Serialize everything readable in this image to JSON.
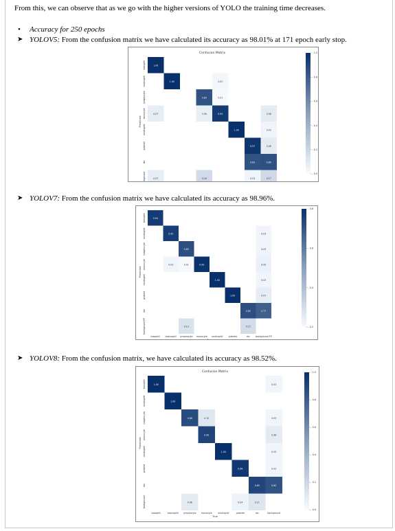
{
  "intro": "From this, we can observe that as we go with the higher versions of YOLO the training time decreases.",
  "bullet": "Accuracy for 250 epochs",
  "sections": [
    {
      "model": "YOLOV5:",
      "text": " From the confusion matrix we have calculated its accuracy as 98.01% at 171 epoch early stop."
    },
    {
      "model": "YOLOV7:",
      "text": " From the confusion matrix we have calculated its accuracy as 98.96%."
    },
    {
      "model": "YOLOV8:",
      "text": " From the confusion matrix, we have calculated its accuracy as 98.52%."
    }
  ],
  "chart_data": [
    {
      "type": "heatmap",
      "title": "Confusion Matrix",
      "xlabel": "True",
      "ylabel": "Predicted",
      "categories": [
        "basophil",
        "eosinophil",
        "lymphocyte",
        "monocyte",
        "neutrophil",
        "platelet",
        "rbc",
        "background"
      ],
      "colorbar_ticks": [
        "1.0",
        "0.8",
        "0.6",
        "0.4",
        "0.2",
        "0.0"
      ],
      "cells": [
        {
          "r": 0,
          "c": 0,
          "v": "1.00"
        },
        {
          "r": 1,
          "c": 1,
          "v": "1.00"
        },
        {
          "r": 1,
          "c": 4,
          "v": "0.02"
        },
        {
          "r": 2,
          "c": 3,
          "v": "0.83"
        },
        {
          "r": 2,
          "c": 4,
          "v": "0.01"
        },
        {
          "r": 3,
          "c": 0,
          "v": "0.07"
        },
        {
          "r": 3,
          "c": 3,
          "v": "0.06"
        },
        {
          "r": 3,
          "c": 4,
          "v": "0.95"
        },
        {
          "r": 3,
          "c": 7,
          "v": "0.08"
        },
        {
          "r": 4,
          "c": 5,
          "v": "1.00"
        },
        {
          "r": 4,
          "c": 7,
          "v": "0.03"
        },
        {
          "r": 5,
          "c": 6,
          "v": "0.97"
        },
        {
          "r": 5,
          "c": 7,
          "v": "0.08"
        },
        {
          "r": 6,
          "c": 6,
          "v": "0.83"
        },
        {
          "r": 6,
          "c": 7,
          "v": "0.84"
        },
        {
          "r": 7,
          "c": 0,
          "v": "0.07"
        },
        {
          "r": 7,
          "c": 3,
          "v": "0.16"
        },
        {
          "r": 7,
          "c": 6,
          "v": "0.03"
        },
        {
          "r": 7,
          "c": 7,
          "v": "0.17"
        }
      ]
    },
    {
      "type": "heatmap",
      "title": "",
      "xlabel": "True",
      "ylabel": "Predicted",
      "categories": [
        "basophil",
        "eosinophil",
        "lymphocyte",
        "monocyte",
        "neutrophil",
        "platelet",
        "rbc",
        "background FP"
      ],
      "colorbar_ticks": [
        "0.8",
        "0.6",
        "0.4",
        "0.2"
      ],
      "cells": [
        {
          "r": 0,
          "c": 0,
          "v": "0.94"
        },
        {
          "r": 1,
          "c": 1,
          "v": "0.93"
        },
        {
          "r": 1,
          "c": 7,
          "v": "0.03"
        },
        {
          "r": 2,
          "c": 2,
          "v": "0.85"
        },
        {
          "r": 2,
          "c": 7,
          "v": "0.03"
        },
        {
          "r": 3,
          "c": 1,
          "v": "0.03"
        },
        {
          "r": 3,
          "c": 2,
          "v": "0.01"
        },
        {
          "r": 3,
          "c": 3,
          "v": "0.99"
        },
        {
          "r": 3,
          "c": 7,
          "v": "0.05"
        },
        {
          "r": 4,
          "c": 4,
          "v": "1.00"
        },
        {
          "r": 4,
          "c": 7,
          "v": "0.03"
        },
        {
          "r": 5,
          "c": 5,
          "v": "1.00"
        },
        {
          "r": 5,
          "c": 7,
          "v": "0.07"
        },
        {
          "r": 6,
          "c": 6,
          "v": "0.85"
        },
        {
          "r": 6,
          "c": 7,
          "v": "0.77"
        },
        {
          "r": 7,
          "c": 2,
          "v": "0.13"
        },
        {
          "r": 7,
          "c": 6,
          "v": "0.15"
        }
      ]
    },
    {
      "type": "heatmap",
      "title": "Confusion Matrix",
      "xlabel": "True",
      "ylabel": "Predicted",
      "categories": [
        "basophil",
        "eosinophil",
        "lymphocyte",
        "monocyte",
        "neutrophil",
        "platelet",
        "rbc",
        "background"
      ],
      "colorbar_ticks": [
        "1.0",
        "0.8",
        "0.6",
        "0.4",
        "0.2",
        "0.0"
      ],
      "cells": [
        {
          "r": 0,
          "c": 0,
          "v": "1.00"
        },
        {
          "r": 0,
          "c": 7,
          "v": "0.03"
        },
        {
          "r": 1,
          "c": 1,
          "v": "1.00"
        },
        {
          "r": 2,
          "c": 2,
          "v": "0.86"
        },
        {
          "r": 2,
          "c": 3,
          "v": "0.10"
        },
        {
          "r": 2,
          "c": 7,
          "v": "0.03"
        },
        {
          "r": 3,
          "c": 3,
          "v": "0.90"
        },
        {
          "r": 3,
          "c": 7,
          "v": "0.08"
        },
        {
          "r": 4,
          "c": 4,
          "v": "1.00"
        },
        {
          "r": 4,
          "c": 7,
          "v": "0.03"
        },
        {
          "r": 5,
          "c": 5,
          "v": "0.96"
        },
        {
          "r": 5,
          "c": 7,
          "v": "0.03"
        },
        {
          "r": 6,
          "c": 6,
          "v": "0.89"
        },
        {
          "r": 6,
          "c": 7,
          "v": "0.83"
        },
        {
          "r": 7,
          "c": 2,
          "v": "0.08"
        },
        {
          "r": 7,
          "c": 5,
          "v": "0.04"
        },
        {
          "r": 7,
          "c": 6,
          "v": "0.11"
        }
      ]
    }
  ]
}
